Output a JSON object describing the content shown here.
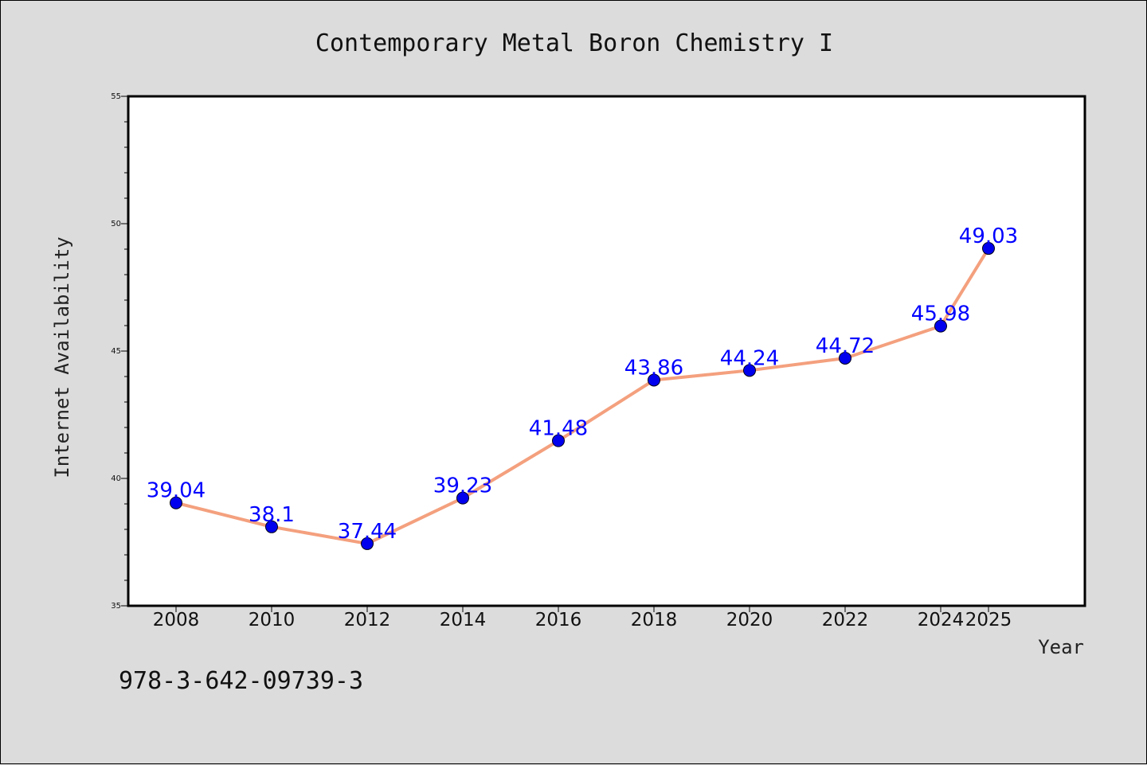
{
  "chart_data": {
    "type": "line",
    "title": "Contemporary Metal Boron Chemistry I",
    "xlabel": "Year",
    "ylabel": "Internet Availability",
    "categories": [
      "2008",
      "2010",
      "2012",
      "2014",
      "2016",
      "2018",
      "2020",
      "2022",
      "2024",
      "2025"
    ],
    "series": [
      {
        "values": [
          39.04,
          38.1,
          37.44,
          39.23,
          41.48,
          43.86,
          44.24,
          44.72,
          45.98,
          49.03
        ],
        "labels": [
          "39.04",
          "38.1",
          "37.44",
          "39.23",
          "41.48",
          "43.86",
          "44.24",
          "44.72",
          "45.98",
          "49.03"
        ]
      }
    ],
    "ylim": [
      35,
      55
    ],
    "yticks": [
      "35",
      "40",
      "45",
      "50",
      "55"
    ],
    "grid": false,
    "legend": "none",
    "line_color": "#f4a07e",
    "marker_color": "#0000ee",
    "label_color": "#0000ff"
  },
  "footer": {
    "isbn": "978-3-642-09739-3"
  }
}
